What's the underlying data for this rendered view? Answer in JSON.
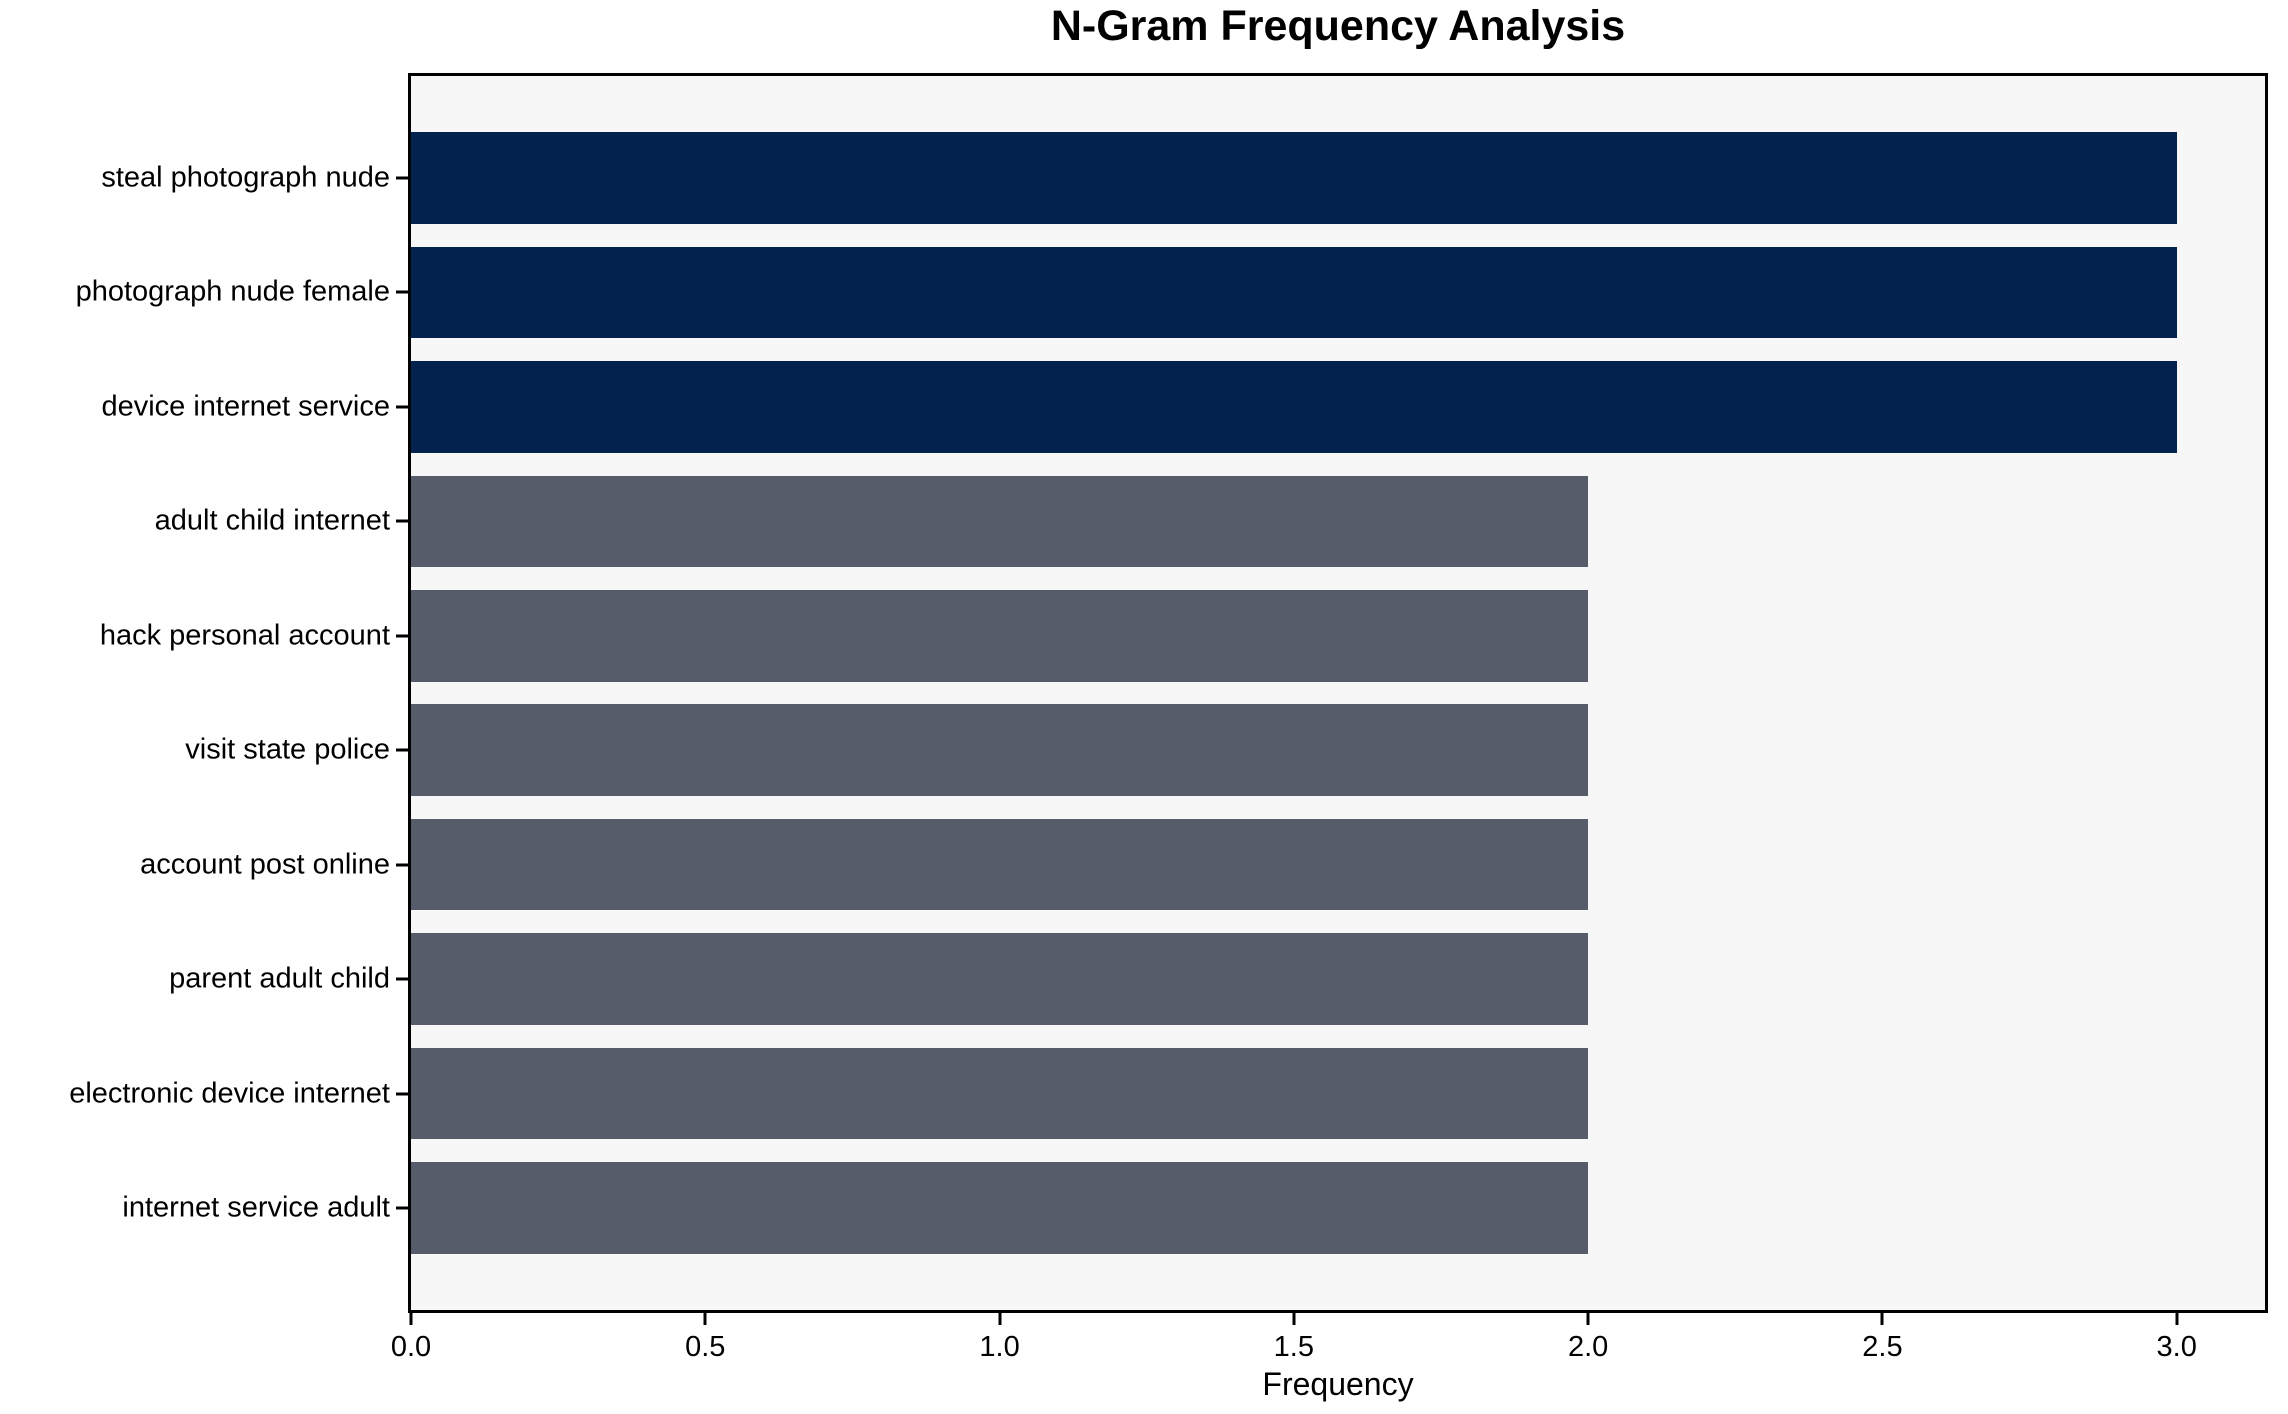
{
  "chart_data": {
    "type": "bar",
    "orientation": "horizontal",
    "title": "N-Gram Frequency Analysis",
    "xlabel": "Frequency",
    "ylabel": "",
    "categories": [
      "steal photograph nude",
      "photograph nude female",
      "device internet service",
      "adult child internet",
      "hack personal account",
      "visit state police",
      "account post online",
      "parent adult child",
      "electronic device internet",
      "internet service adult"
    ],
    "values": [
      3,
      3,
      3,
      2,
      2,
      2,
      2,
      2,
      2,
      2
    ],
    "bar_colors": [
      "#03234e",
      "#03234e",
      "#03234e",
      "#565c6a",
      "#565c6a",
      "#565c6a",
      "#565c6a",
      "#565c6a",
      "#565c6a",
      "#565c6a"
    ],
    "xlim": [
      0,
      3.15
    ],
    "xticks": [
      0.0,
      0.5,
      1.0,
      1.5,
      2.0,
      2.5,
      3.0
    ],
    "xtick_labels": [
      "0.0",
      "0.5",
      "1.0",
      "1.5",
      "2.0",
      "2.5",
      "3.0"
    ],
    "bar_width_fraction": 0.8,
    "grid": false,
    "legend": null,
    "colors": {
      "high_frequency_bar": "#03234e",
      "low_frequency_bar": "#565c6a",
      "plot_background": "#f7f7f7",
      "figure_background": "#ffffff",
      "spine": "#000000",
      "text": "#000000"
    }
  }
}
